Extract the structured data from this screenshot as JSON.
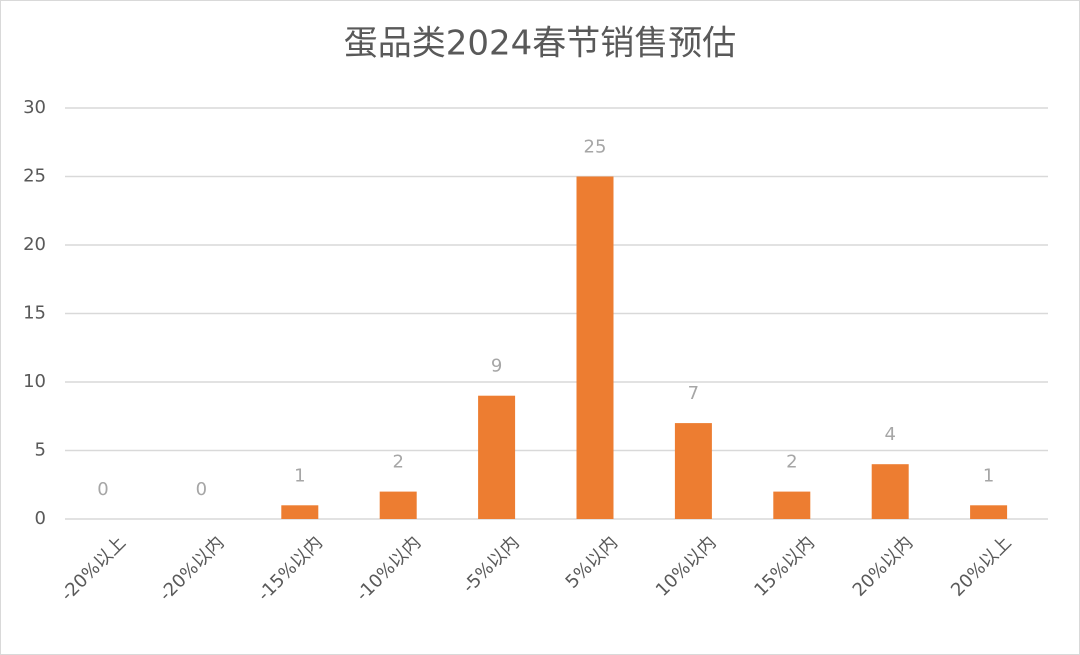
{
  "chart_data": {
    "type": "bar",
    "title": "蛋品类2024春节销售预估",
    "categories": [
      "-20%以上",
      "-20%以内",
      "-15%以内",
      "-10%以内",
      "-5%以内",
      "5%以内",
      "10%以内",
      "15%以内",
      "20%以内",
      "20%以上"
    ],
    "values": [
      0,
      0,
      1,
      2,
      9,
      25,
      7,
      2,
      4,
      1
    ],
    "color": "#ed7d31",
    "ylim": [
      0,
      30
    ],
    "yticks": [
      0,
      5,
      10,
      15,
      20,
      25,
      30
    ],
    "grid": true
  }
}
